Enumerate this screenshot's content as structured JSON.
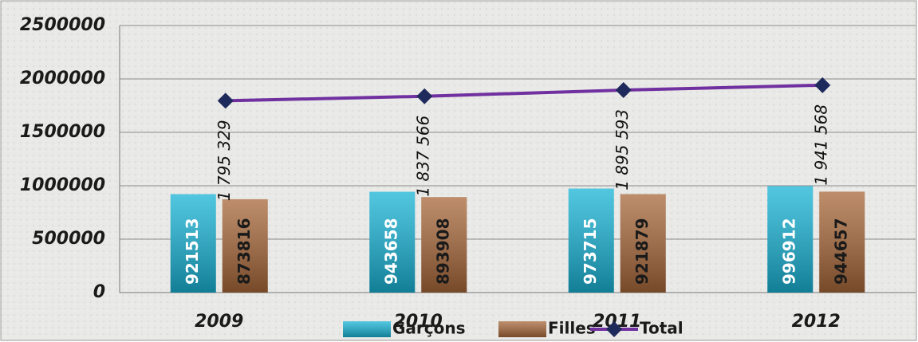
{
  "chart_data": {
    "type": "bar-line",
    "categories": [
      "2009",
      "2010",
      "2011",
      "2012"
    ],
    "series": [
      {
        "name": "Garçons",
        "type": "bar",
        "color": "#19b4d6",
        "values": [
          921513,
          943658,
          973715,
          996912
        ]
      },
      {
        "name": "Filles",
        "type": "bar",
        "color": "#a8683a",
        "values": [
          873816,
          893908,
          921879,
          944657
        ]
      },
      {
        "name": "Total",
        "type": "line",
        "color": "#7030a0",
        "marker_color": "#1f2a5c",
        "values": [
          1795329,
          1837566,
          1895593,
          1941568
        ],
        "value_labels": [
          "1 795 329",
          "1 837 566",
          "1 895 593",
          "1 941 568"
        ]
      }
    ],
    "ylim": [
      0,
      2500000
    ],
    "yticks": [
      0,
      500000,
      1000000,
      1500000,
      2000000,
      2500000
    ],
    "grid": true,
    "legend": "bottom"
  }
}
